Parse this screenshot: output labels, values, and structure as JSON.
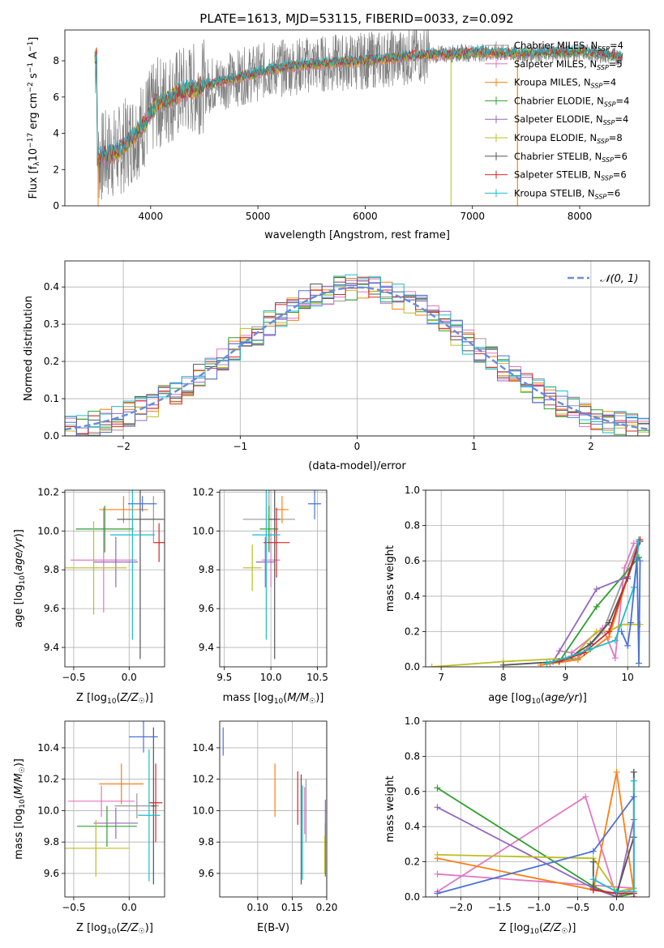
{
  "title": "PLATE=1613, MJD=53115, FIBERID=0033, z=0.092",
  "colors": {
    "Chabrier MILES": "#999999",
    "Salpeter MILES": "#e377c2",
    "Kroupa MILES": "#ff7f0e",
    "Chabrier ELODIE": "#2ca02c",
    "Salpeter ELODIE": "#9467bd",
    "Kroupa ELODIE": "#bcbd22",
    "Chabrier STELIB": "#555555",
    "Salpeter STELIB": "#d62728",
    "Kroupa STELIB": "#17becf",
    "extra": "#4c72d8",
    "gaussian": "#6a8fd8",
    "data": "#808080"
  },
  "chart_data": [
    {
      "id": "spectrum",
      "type": "line",
      "xlabel": "wavelength [Angstrom, rest frame]",
      "ylabel": "Flux [f_λ10^-17 erg cm^-2 s^-1 A^-1]",
      "xlim": [
        3200,
        8650
      ],
      "ylim": [
        0,
        9.7
      ],
      "xticks": [
        4000,
        5000,
        6000,
        7000,
        8000
      ],
      "yticks": [
        0,
        2,
        4,
        6,
        8
      ],
      "legend_position": "upper-right",
      "legend": [
        {
          "label": "Chabrier MILES, N_SSP=4",
          "text": "Chabrier MILES, N",
          "n": "4"
        },
        {
          "label": "Salpeter MILES, N_SSP=5",
          "text": "Salpeter MILES, N",
          "n": "5"
        },
        {
          "label": "Kroupa MILES, N_SSP=4",
          "text": "Kroupa MILES, N",
          "n": "4"
        },
        {
          "label": "Chabrier ELODIE, N_SSP=4",
          "text": "Chabrier ELODIE, N",
          "n": "4"
        },
        {
          "label": "Salpeter ELODIE, N_SSP=4",
          "text": "Salpeter ELODIE, N",
          "n": "4"
        },
        {
          "label": "Kroupa ELODIE, N_SSP=8",
          "text": "Kroupa ELODIE, N",
          "n": "8"
        },
        {
          "label": "Chabrier STELIB, N_SSP=6",
          "text": "Chabrier STELIB, N",
          "n": "6"
        },
        {
          "label": "Salpeter STELIB, N_SSP=6",
          "text": "Salpeter STELIB, N",
          "n": "6"
        },
        {
          "label": "Kroupa STELIB, N_SSP=6",
          "text": "Kroupa STELIB, N",
          "n": "6"
        }
      ],
      "continuum": [
        [
          3500,
          2.6
        ],
        [
          3700,
          3.0
        ],
        [
          3900,
          4.2
        ],
        [
          4050,
          5.6
        ],
        [
          4300,
          6.3
        ],
        [
          4700,
          6.9
        ],
        [
          5100,
          7.5
        ],
        [
          5500,
          7.8
        ],
        [
          6000,
          8.0
        ],
        [
          6500,
          8.3
        ],
        [
          7000,
          8.45
        ],
        [
          7500,
          8.4
        ],
        [
          8000,
          8.5
        ],
        [
          8400,
          8.2
        ]
      ]
    },
    {
      "id": "residuals",
      "type": "histogram",
      "xlabel": "(data-model)/error",
      "ylabel": "Normed distribution",
      "xlim": [
        -2.5,
        2.5
      ],
      "ylim": [
        0,
        0.47
      ],
      "xticks": [
        -2,
        -1,
        0,
        1,
        2
      ],
      "yticks": [
        0.0,
        0.1,
        0.2,
        0.3,
        0.4
      ],
      "legend": [
        "𝒩(0, 1)"
      ],
      "bin_width": 0.1,
      "gaussian": {
        "mean": 0,
        "sigma": 1
      }
    },
    {
      "id": "age-vs-Z",
      "type": "errorbar",
      "xlabel": "Z [log10(Z/Z☉)]",
      "ylabel": "age [log10(age/yr)]",
      "xlim": [
        -0.58,
        0.32
      ],
      "ylim": [
        9.3,
        10.21
      ],
      "xticks": [
        -0.5,
        0.0
      ],
      "yticks": [
        9.4,
        9.6,
        9.8,
        10.0,
        10.2
      ],
      "points": [
        {
          "model": "Chabrier MILES",
          "x": 0.22,
          "y": 10.06,
          "xerr": 0.1,
          "yerr": 0.12
        },
        {
          "model": "Salpeter MILES",
          "x": -0.23,
          "y": 9.85,
          "xerr": 0.3,
          "yerr": 0.27
        },
        {
          "model": "Kroupa MILES",
          "x": -0.05,
          "y": 10.11,
          "xerr": 0.22,
          "yerr": 0.07
        },
        {
          "model": "Chabrier ELODIE",
          "x": -0.22,
          "y": 10.01,
          "xerr": 0.26,
          "yerr": 0.12
        },
        {
          "model": "Salpeter ELODIE",
          "x": -0.12,
          "y": 9.84,
          "xerr": 0.2,
          "yerr": 0.13
        },
        {
          "model": "Kroupa ELODIE",
          "x": -0.32,
          "y": 9.81,
          "xerr": 0.3,
          "yerr": 0.24
        },
        {
          "model": "Chabrier STELIB",
          "x": 0.1,
          "y": 10.06,
          "xerr": 0.21,
          "yerr": 0.72
        },
        {
          "model": "Salpeter STELIB",
          "x": 0.27,
          "y": 9.94,
          "xerr": 0.05,
          "yerr": 0.1
        },
        {
          "model": "Kroupa STELIB",
          "x": 0.03,
          "y": 9.98,
          "xerr": 0.2,
          "yerr": 0.54
        },
        {
          "model": "extra",
          "x": 0.12,
          "y": 10.14,
          "xerr": 0.13,
          "yerr": 0.04
        }
      ]
    },
    {
      "id": "age-vs-mass",
      "type": "errorbar",
      "xlabel": "mass [log10(M/M☉)]",
      "ylabel": "",
      "xlim": [
        9.45,
        10.6
      ],
      "ylim": [
        9.3,
        10.21
      ],
      "xticks": [
        9.5,
        10.0,
        10.5
      ],
      "yticks": [
        9.4,
        9.6,
        9.8,
        10.0,
        10.2
      ],
      "points": [
        {
          "model": "Chabrier MILES",
          "x": 9.98,
          "y": 10.06,
          "xerr": 0.28,
          "yerr": 0.16
        },
        {
          "model": "Salpeter MILES",
          "x": 10.0,
          "y": 9.85,
          "xerr": 0.1,
          "yerr": 0.14
        },
        {
          "model": "Kroupa MILES",
          "x": 10.12,
          "y": 10.11,
          "xerr": 0.07,
          "yerr": 0.07
        },
        {
          "model": "Chabrier ELODIE",
          "x": 9.98,
          "y": 10.01,
          "xerr": 0.1,
          "yerr": 0.12
        },
        {
          "model": "Salpeter ELODIE",
          "x": 9.94,
          "y": 9.84,
          "xerr": 0.1,
          "yerr": 0.13
        },
        {
          "model": "Kroupa ELODIE",
          "x": 9.8,
          "y": 9.81,
          "xerr": 0.1,
          "yerr": 0.12
        },
        {
          "model": "Chabrier STELIB",
          "x": 10.04,
          "y": 10.06,
          "xerr": 0.06,
          "yerr": 0.72
        },
        {
          "model": "Salpeter STELIB",
          "x": 10.06,
          "y": 9.94,
          "xerr": 0.14,
          "yerr": 0.18
        },
        {
          "model": "Kroupa STELIB",
          "x": 9.95,
          "y": 9.98,
          "xerr": 0.15,
          "yerr": 0.54
        },
        {
          "model": "extra",
          "x": 10.47,
          "y": 10.14,
          "xerr": 0.07,
          "yerr": 0.08
        }
      ]
    },
    {
      "id": "weight-vs-age",
      "type": "line",
      "xlabel": "age [log10(age/yr)]",
      "ylabel": "mass weight",
      "xlim": [
        6.75,
        10.35
      ],
      "ylim": [
        0,
        1.0
      ],
      "xticks": [
        7,
        8,
        9,
        10
      ],
      "yticks": [
        0.0,
        0.2,
        0.4,
        0.6,
        0.8,
        1.0
      ],
      "series": [
        {
          "model": "Chabrier MILES",
          "x": [
            8.75,
            9.2,
            9.6,
            10.18
          ],
          "y": [
            0.02,
            0.05,
            0.2,
            0.72
          ]
        },
        {
          "model": "Salpeter MILES",
          "x": [
            8.9,
            9.1,
            9.6,
            9.8,
            9.95,
            10.1
          ],
          "y": [
            0.09,
            0.08,
            0.22,
            0.05,
            0.56,
            0.7
          ]
        },
        {
          "model": "Kroupa MILES",
          "x": [
            8.6,
            9.2,
            9.7,
            10.18
          ],
          "y": [
            0.01,
            0.04,
            0.17,
            0.71
          ]
        },
        {
          "model": "Chabrier ELODIE",
          "x": [
            8.9,
            9.5,
            10.18
          ],
          "y": [
            0.03,
            0.34,
            0.62
          ]
        },
        {
          "model": "Salpeter ELODIE",
          "x": [
            8.8,
            9.5,
            10.0,
            10.18
          ],
          "y": [
            0.03,
            0.44,
            0.51,
            0.71
          ]
        },
        {
          "model": "Kroupa ELODIE",
          "x": [
            6.85,
            8.0,
            9.1,
            9.5,
            9.7,
            9.9,
            10.2
          ],
          "y": [
            0.0,
            0.03,
            0.05,
            0.2,
            0.2,
            0.24,
            0.24
          ]
        },
        {
          "model": "Chabrier STELIB",
          "x": [
            8.0,
            8.9,
            9.1,
            9.4,
            9.7,
            10.0,
            10.2
          ],
          "y": [
            0.01,
            0.03,
            0.06,
            0.13,
            0.25,
            0.5,
            0.71
          ]
        },
        {
          "model": "Salpeter STELIB",
          "x": [
            8.9,
            9.3,
            9.7,
            10.2
          ],
          "y": [
            0.03,
            0.08,
            0.2,
            0.72
          ]
        },
        {
          "model": "Kroupa STELIB",
          "x": [
            8.7,
            9.0,
            9.4,
            9.8,
            10.1,
            10.18
          ],
          "y": [
            0.02,
            0.05,
            0.1,
            0.15,
            0.45,
            0.71
          ]
        },
        {
          "model": "extra",
          "x": [
            9.9,
            10.0,
            10.05,
            10.15,
            10.18,
            10.2
          ],
          "y": [
            0.2,
            0.12,
            0.25,
            0.61,
            0.02,
            0.6
          ]
        }
      ]
    },
    {
      "id": "mass-vs-Z",
      "type": "errorbar",
      "xlabel": "Z [log10(Z/Z☉)]",
      "ylabel": "mass [log10(M/M☉)]",
      "xlim": [
        -0.58,
        0.32
      ],
      "ylim": [
        9.45,
        10.57
      ],
      "xticks": [
        -0.5,
        0.0
      ],
      "yticks": [
        9.6,
        9.8,
        10.0,
        10.2,
        10.4
      ],
      "points": [
        {
          "model": "Chabrier MILES",
          "x": 0.07,
          "y": 10.03,
          "xerr": 0.2,
          "yerr": 0.08
        },
        {
          "model": "Salpeter MILES",
          "x": -0.25,
          "y": 10.06,
          "xerr": 0.3,
          "yerr": 0.1
        },
        {
          "model": "Kroupa MILES",
          "x": -0.07,
          "y": 10.17,
          "xerr": 0.2,
          "yerr": 0.13
        },
        {
          "model": "Chabrier ELODIE",
          "x": -0.2,
          "y": 9.9,
          "xerr": 0.27,
          "yerr": 0.13
        },
        {
          "model": "Salpeter ELODIE",
          "x": -0.12,
          "y": 9.92,
          "xerr": 0.2,
          "yerr": 0.1
        },
        {
          "model": "Kroupa ELODIE",
          "x": -0.3,
          "y": 9.76,
          "xerr": 0.3,
          "yerr": 0.18
        },
        {
          "model": "Chabrier STELIB",
          "x": 0.22,
          "y": 10.03,
          "xerr": 0.02,
          "yerr": 0.5
        },
        {
          "model": "Salpeter STELIB",
          "x": 0.24,
          "y": 10.05,
          "xerr": 0.06,
          "yerr": 0.25
        },
        {
          "model": "Kroupa STELIB",
          "x": 0.18,
          "y": 9.97,
          "xerr": 0.1,
          "yerr": 0.42
        },
        {
          "model": "extra",
          "x": 0.13,
          "y": 10.47,
          "xerr": 0.13,
          "yerr": 0.1
        }
      ]
    },
    {
      "id": "mass-vs-ebv",
      "type": "errorbar",
      "xlabel": "E(B-V)",
      "ylabel": "",
      "xlim": [
        0.045,
        0.2
      ],
      "ylim": [
        9.45,
        10.57
      ],
      "xticks": [
        0.1,
        0.15,
        0.2
      ],
      "yticks": [
        9.6,
        9.8,
        10.0,
        10.2,
        10.4
      ],
      "points": [
        {
          "model": "Chabrier MILES",
          "x": 0.17,
          "y": 10.0,
          "yerr": 0.2
        },
        {
          "model": "Salpeter MILES",
          "x": 0.168,
          "y": 10.0,
          "yerr": 0.15
        },
        {
          "model": "Kroupa MILES",
          "x": 0.125,
          "y": 10.13,
          "yerr": 0.17
        },
        {
          "model": "Chabrier ELODIE",
          "x": 0.198,
          "y": 9.75,
          "yerr": 0.17
        },
        {
          "model": "Salpeter ELODIE",
          "x": 0.198,
          "y": 9.88,
          "yerr": 0.19
        },
        {
          "model": "Kroupa ELODIE",
          "x": 0.197,
          "y": 9.72,
          "yerr": 0.12
        },
        {
          "model": "Chabrier STELIB",
          "x": 0.163,
          "y": 9.88,
          "yerr": 0.35
        },
        {
          "model": "Salpeter STELIB",
          "x": 0.158,
          "y": 10.08,
          "yerr": 0.17
        },
        {
          "model": "Kroupa STELIB",
          "x": 0.165,
          "y": 9.86,
          "yerr": 0.3
        },
        {
          "model": "extra",
          "x": 0.05,
          "y": 10.44,
          "yerr": 0.09
        }
      ]
    },
    {
      "id": "weight-vs-Z",
      "type": "line",
      "xlabel": "Z [log10(Z/Z☉)]",
      "ylabel": "mass weight",
      "xlim": [
        -2.45,
        0.42
      ],
      "ylim": [
        0,
        1.0
      ],
      "xticks": [
        -2.0,
        -1.5,
        -1.0,
        -0.5,
        0.0
      ],
      "yticks": [
        0.0,
        0.2,
        0.4,
        0.6,
        0.8,
        1.0
      ],
      "series": [
        {
          "model": "Chabrier MILES",
          "x": [
            -0.3,
            0.0,
            0.22,
            0.22
          ],
          "y": [
            0.05,
            0.0,
            0.05,
            0.71
          ]
        },
        {
          "model": "Salpeter MILES",
          "x": [
            -2.3,
            -0.4,
            0.0,
            0.22,
            -2.3
          ],
          "y": [
            0.03,
            0.57,
            0.0,
            0.05,
            0.13
          ]
        },
        {
          "model": "Kroupa MILES",
          "x": [
            -2.3,
            -0.3,
            0.0,
            0.22
          ],
          "y": [
            0.22,
            0.04,
            0.71,
            0.03
          ]
        },
        {
          "model": "Chabrier ELODIE",
          "x": [
            -2.3,
            -0.3,
            0.0,
            0.22
          ],
          "y": [
            0.62,
            0.06,
            0.0,
            0.02
          ]
        },
        {
          "model": "Salpeter ELODIE",
          "x": [
            -2.3,
            -0.3,
            0.0,
            0.22,
            0.22
          ],
          "y": [
            0.51,
            0.05,
            0.0,
            0.44,
            0.03
          ]
        },
        {
          "model": "Kroupa ELODIE",
          "x": [
            -2.3,
            -0.3,
            0.0,
            0.22
          ],
          "y": [
            0.24,
            0.22,
            0.03,
            0.05
          ]
        },
        {
          "model": "Chabrier STELIB",
          "x": [
            -0.3,
            -0.3,
            0.0,
            0.22,
            0.22
          ],
          "y": [
            0.2,
            0.04,
            0.02,
            0.34,
            0.71
          ]
        },
        {
          "model": "Salpeter STELIB",
          "x": [
            -0.3,
            0.0,
            0.22,
            0.22
          ],
          "y": [
            0.04,
            0.02,
            0.02,
            0.0
          ]
        },
        {
          "model": "Kroupa STELIB",
          "x": [
            -0.3,
            0.0,
            0.22,
            0.22
          ],
          "y": [
            0.1,
            0.03,
            0.03,
            0.66
          ]
        },
        {
          "model": "extra",
          "x": [
            -2.3,
            -0.3,
            0.22
          ],
          "y": [
            0.02,
            0.26,
            0.57
          ]
        }
      ]
    }
  ]
}
